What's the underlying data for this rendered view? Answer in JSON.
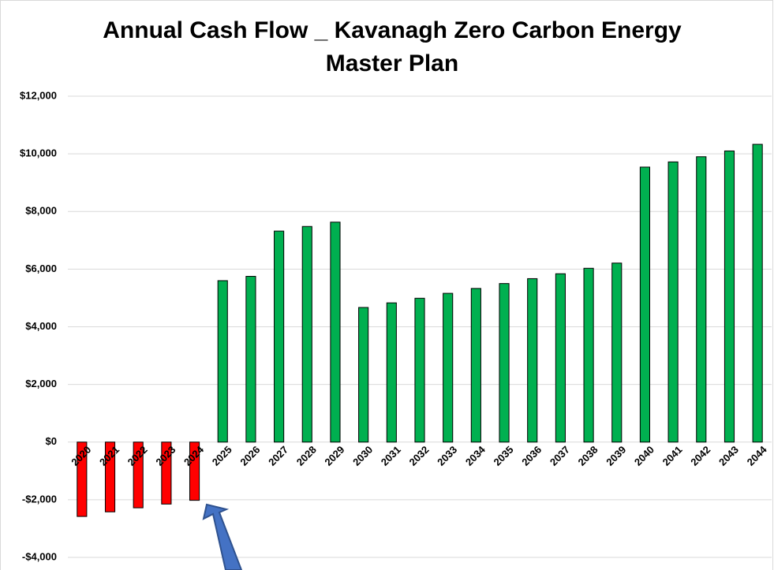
{
  "chart_data": {
    "type": "bar",
    "title": "Annual Cash Flow _ Kavanagh Zero Carbon Energy Master Plan",
    "categories": [
      "2020",
      "2021",
      "2022",
      "2023",
      "2024",
      "2025",
      "2026",
      "2027",
      "2028",
      "2029",
      "2030",
      "2031",
      "2032",
      "2033",
      "2034",
      "2035",
      "2036",
      "2037",
      "2038",
      "2039",
      "2040",
      "2041",
      "2042",
      "2043",
      "2044"
    ],
    "values": [
      -2580,
      -2420,
      -2280,
      -2150,
      -2020,
      5600,
      5750,
      7320,
      7480,
      7630,
      4670,
      4830,
      4990,
      5160,
      5330,
      5500,
      5670,
      5840,
      6030,
      6210,
      9540,
      9720,
      9900,
      10100,
      10330
    ],
    "colors": [
      "#ff0000",
      "#ff0000",
      "#ff0000",
      "#ff0000",
      "#ff0000",
      "#00b050",
      "#00b050",
      "#00b050",
      "#00b050",
      "#00b050",
      "#00b050",
      "#00b050",
      "#00b050",
      "#00b050",
      "#00b050",
      "#00b050",
      "#00b050",
      "#00b050",
      "#00b050",
      "#00b050",
      "#00b050",
      "#00b050",
      "#00b050",
      "#00b050",
      "#00b050"
    ],
    "ylim": [
      -4000,
      12000
    ],
    "yticks": [
      {
        "value": -4000,
        "label": "-$4,000"
      },
      {
        "value": -2000,
        "label": "-$2,000"
      },
      {
        "value": 0,
        "label": "$0"
      },
      {
        "value": 2000,
        "label": "$2,000"
      },
      {
        "value": 4000,
        "label": "$4,000"
      },
      {
        "value": 6000,
        "label": "$6,000"
      },
      {
        "value": 8000,
        "label": "$8,000"
      },
      {
        "value": 10000,
        "label": "$10,000"
      },
      {
        "value": 12000,
        "label": "$12,000"
      }
    ],
    "grid": true
  }
}
